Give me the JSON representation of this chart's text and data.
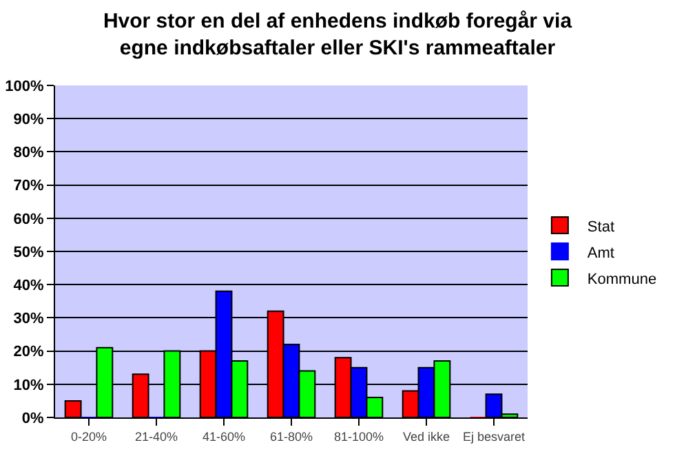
{
  "chart_data": {
    "type": "bar",
    "title": "Hvor stor en del af enhedens indkøb foregår via egne indkøbsaftaler eller SKI's rammeaftaler",
    "categories": [
      "0-20%",
      "21-40%",
      "41-60%",
      "61-80%",
      "81-100%",
      "Ved ikke",
      "Ej besvaret"
    ],
    "series": [
      {
        "name": "Stat",
        "color": "#ff0000",
        "values": [
          5,
          13,
          20,
          32,
          18,
          8,
          0
        ]
      },
      {
        "name": "Amt",
        "color": "#0000ff",
        "values": [
          0,
          0,
          38,
          22,
          15,
          15,
          7
        ]
      },
      {
        "name": "Kommune",
        "color": "#00ff00",
        "values": [
          21,
          20,
          17,
          14,
          6,
          17,
          1
        ]
      }
    ],
    "ylim": [
      0,
      100
    ],
    "yticks": [
      {
        "value": 0,
        "label": "0%"
      },
      {
        "value": 10,
        "label": "10%"
      },
      {
        "value": 20,
        "label": "20%"
      },
      {
        "value": 30,
        "label": "30%"
      },
      {
        "value": 40,
        "label": "40%"
      },
      {
        "value": 50,
        "label": "50%"
      },
      {
        "value": 60,
        "label": "60%"
      },
      {
        "value": 70,
        "label": "70%"
      },
      {
        "value": 80,
        "label": "80%"
      },
      {
        "value": 90,
        "label": "90%"
      },
      {
        "value": 100,
        "label": "100%"
      }
    ],
    "grid": "y",
    "legend": "right"
  }
}
